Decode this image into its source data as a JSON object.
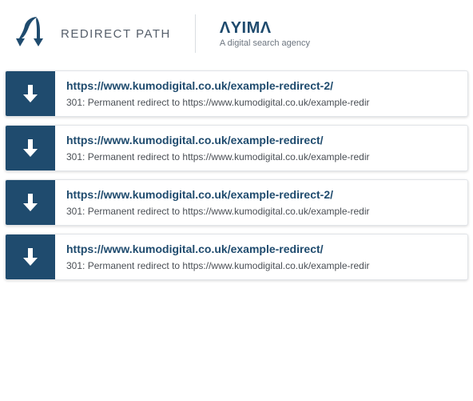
{
  "header": {
    "brand_title": "REDIRECT PATH",
    "agency_name": "ΛYIMΛ",
    "agency_tag": "A digital search agency",
    "colors": {
      "accent": "#1f4b6e",
      "text_muted": "#6d7680",
      "divider": "#d9dde1",
      "card_border": "#e1e4e8"
    }
  },
  "redirects": [
    {
      "url": "https://www.kumodigital.co.uk/example-redirect-2/",
      "status": "301: Permanent redirect to https://www.kumodigital.co.uk/example-redir",
      "icon": "arrow-down-icon",
      "icon_bg": "#1f4b6e"
    },
    {
      "url": "https://www.kumodigital.co.uk/example-redirect/",
      "status": "301: Permanent redirect to https://www.kumodigital.co.uk/example-redir",
      "icon": "arrow-down-icon",
      "icon_bg": "#1f4b6e"
    },
    {
      "url": "https://www.kumodigital.co.uk/example-redirect-2/",
      "status": "301: Permanent redirect to https://www.kumodigital.co.uk/example-redir",
      "icon": "arrow-down-icon",
      "icon_bg": "#1f4b6e"
    },
    {
      "url": "https://www.kumodigital.co.uk/example-redirect/",
      "status": "301: Permanent redirect to https://www.kumodigital.co.uk/example-redir",
      "icon": "arrow-down-icon",
      "icon_bg": "#1f4b6e"
    }
  ]
}
